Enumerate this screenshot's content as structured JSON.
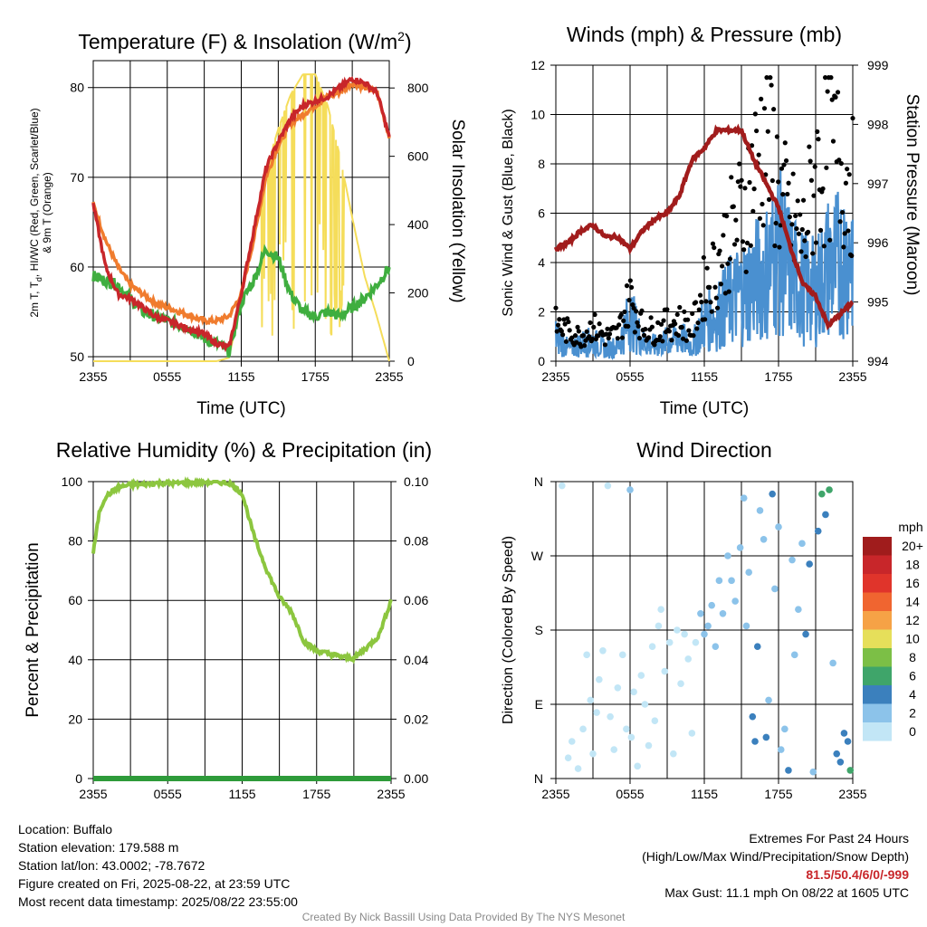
{
  "colors": {
    "temp_red": "#c8262a",
    "dewpoint_green": "#3fae3f",
    "temp9m_orange": "#f07c2e",
    "insolation_yellow": "#f5dd5a",
    "rh_green": "#8cc63f",
    "precip_green": "#2e9b3a",
    "wind_blue": "#4a90d0",
    "gust_black": "#000000",
    "pressure_maroon": "#a11c1c",
    "extremes_red": "#c8262a",
    "credit_gray": "#8a8a8a"
  },
  "chart_data": [
    {
      "type": "line",
      "title": "Temperature (F) & Insolation (W/m²)",
      "xlabel": "Time (UTC)",
      "ylabel": "2m T, Td, HI/WC (Red, Green, Scarlet/Blue) & 9m T (Orange)",
      "ylabel_parts": [
        "2m T, T",
        "d",
        ", HI/WC (Red, Green, Scarlet/Blue)",
        "& 9m T (Orange)"
      ],
      "y2label": "Solar Insolation (Yellow)",
      "x_ticks": [
        "2355",
        "0555",
        "1155",
        "1755",
        "2355"
      ],
      "x": [
        0,
        1,
        2,
        3,
        4,
        5,
        6,
        7,
        8,
        9,
        10,
        11,
        12,
        13,
        14,
        15,
        16,
        17,
        18,
        19,
        20,
        21,
        22,
        23,
        24
      ],
      "xlim": [
        0,
        24
      ],
      "ylim": [
        49.5,
        83
      ],
      "y_ticks": [
        50,
        60,
        70,
        80
      ],
      "y2lim": [
        0,
        880
      ],
      "y2_ticks": [
        0,
        200,
        400,
        600,
        800
      ],
      "grid": true,
      "series": [
        {
          "name": "2m T",
          "axis": "left",
          "values": [
            67,
            60,
            57,
            56.5,
            55.5,
            54.5,
            54,
            53.5,
            53,
            52.5,
            51.5,
            51,
            57,
            64,
            71,
            74,
            76.5,
            78,
            78.5,
            79,
            80,
            81,
            80.5,
            79.5,
            74.5
          ]
        },
        {
          "name": "9m T",
          "axis": "left",
          "values": [
            67,
            63,
            60,
            58,
            57,
            56,
            55.5,
            55,
            54.5,
            54,
            54,
            54.5,
            57,
            63,
            70,
            73.5,
            76,
            77,
            78,
            79,
            79.5,
            80.5,
            80,
            79.5,
            74.5
          ]
        },
        {
          "name": "Td",
          "axis": "left",
          "values": [
            59,
            58.5,
            58,
            56.5,
            55,
            54.5,
            54,
            53.5,
            53,
            52,
            51.5,
            50.5,
            56,
            58.5,
            62,
            61,
            57,
            55,
            54.5,
            55,
            54.5,
            55.5,
            56.5,
            58,
            60
          ]
        },
        {
          "name": "Solar Insolation",
          "axis": "right",
          "values": [
            0,
            0,
            0,
            0,
            0,
            0,
            0,
            0,
            0,
            0,
            0,
            10,
            180,
            380,
            560,
            680,
            780,
            840,
            840,
            750,
            600,
            420,
            250,
            130,
            0
          ]
        }
      ]
    },
    {
      "type": "scatter",
      "title": "Winds (mph) & Pressure (mb)",
      "xlabel": "Time (UTC)",
      "ylabel": "Sonic Wind & Gust (Blue, Black)",
      "y2label": "Station Pressure (Maroon)",
      "x_ticks": [
        "2355",
        "0555",
        "1155",
        "1755",
        "2355"
      ],
      "xlim": [
        0,
        24
      ],
      "ylim": [
        0,
        12
      ],
      "y_ticks": [
        0,
        2,
        4,
        6,
        8,
        10,
        12
      ],
      "y2lim": [
        994,
        999
      ],
      "y2_ticks": [
        994,
        995,
        996,
        997,
        998,
        999
      ],
      "grid": true,
      "x": [
        0,
        1,
        2,
        3,
        4,
        5,
        6,
        7,
        8,
        9,
        10,
        11,
        12,
        13,
        14,
        15,
        16,
        17,
        18,
        19,
        20,
        21,
        22,
        23,
        24
      ],
      "series": [
        {
          "name": "Sonic Wind",
          "axis": "left",
          "values": [
            1.0,
            0.5,
            0.7,
            0.8,
            0.5,
            0.6,
            1.8,
            0.8,
            0.6,
            0.8,
            1.0,
            0.6,
            1.6,
            1.8,
            2.4,
            2.8,
            3.2,
            3.6,
            4.5,
            3.5,
            3.0,
            2.8,
            3.8,
            4.0,
            4.5
          ]
        },
        {
          "name": "Gust",
          "axis": "left",
          "values": [
            1.5,
            1.2,
            1.0,
            1.4,
            1.0,
            1.1,
            2.6,
            1.4,
            1.2,
            1.5,
            1.6,
            1.3,
            3.0,
            3.8,
            5.0,
            6.0,
            7.5,
            9.5,
            7.0,
            5.5,
            5.0,
            7.5,
            8.5,
            8.0,
            7.2
          ]
        },
        {
          "name": "Station Pressure",
          "axis": "right",
          "values": [
            995.9,
            996.0,
            996.2,
            996.3,
            996.1,
            996.1,
            995.9,
            996.2,
            996.4,
            996.5,
            996.8,
            997.4,
            997.6,
            997.9,
            997.9,
            997.9,
            997.4,
            997.0,
            996.6,
            995.9,
            995.3,
            995.1,
            994.6,
            994.8,
            995.0
          ]
        }
      ]
    },
    {
      "type": "line",
      "title": "Relative Humidity (%) & Precipitation (in)",
      "ylabel": "Percent & Precipitation",
      "x_ticks": [
        "2355",
        "0555",
        "1155",
        "1755",
        "2355"
      ],
      "x": [
        0,
        0.5,
        1,
        2,
        3,
        4,
        5,
        6,
        7,
        8,
        9,
        10,
        11,
        12,
        13,
        14,
        15,
        16,
        17,
        18,
        19,
        20,
        21,
        22,
        23,
        24
      ],
      "xlim": [
        0,
        24
      ],
      "ylim": [
        0,
        100
      ],
      "y_ticks": [
        0,
        20,
        40,
        60,
        80,
        100
      ],
      "y2lim": [
        0,
        0.1
      ],
      "y2_ticks": [
        "0.00",
        "0.02",
        "0.04",
        "0.06",
        "0.08",
        "0.10"
      ],
      "grid": true,
      "series": [
        {
          "name": "Relative Humidity",
          "axis": "left",
          "values": [
            76,
            90,
            95,
            98,
            99,
            99,
            99.5,
            99.5,
            99.5,
            99.7,
            99.8,
            99.8,
            99.5,
            96,
            81,
            70,
            61,
            56,
            46,
            43,
            42,
            41,
            40.5,
            44,
            48,
            60
          ]
        },
        {
          "name": "Precipitation",
          "axis": "right",
          "values": [
            0,
            0,
            0,
            0,
            0,
            0,
            0,
            0,
            0,
            0,
            0,
            0,
            0,
            0,
            0,
            0,
            0,
            0,
            0,
            0,
            0,
            0,
            0,
            0,
            0,
            0
          ]
        }
      ]
    },
    {
      "type": "scatter",
      "title": "Wind Direction",
      "ylabel": "Direction (Colored By Speed)",
      "x_ticks": [
        "2355",
        "0555",
        "1155",
        "1755",
        "2355"
      ],
      "y_ticks": [
        "N",
        "E",
        "S",
        "W",
        "N"
      ],
      "xlim": [
        0,
        24
      ],
      "ylim": [
        0,
        360
      ],
      "grid": true,
      "legend": {
        "title": "mph",
        "placement": "right",
        "labels": [
          "20+",
          "18",
          "16",
          "14",
          "12",
          "10",
          "8",
          "6",
          "4",
          "2",
          "0"
        ],
        "colors": [
          "#a01c1c",
          "#c8262a",
          "#e0342b",
          "#f06530",
          "#f6a246",
          "#e6df5a",
          "#7cbf46",
          "#3fa56a",
          "#3b80bd",
          "#8cc3ea",
          "#c2e6f6"
        ]
      },
      "points": [
        {
          "x": 0.5,
          "y": 355,
          "speed": 1
        },
        {
          "x": 1.0,
          "y": 25,
          "speed": 1
        },
        {
          "x": 1.3,
          "y": 45,
          "speed": 1
        },
        {
          "x": 1.8,
          "y": 12,
          "speed": 1
        },
        {
          "x": 2.2,
          "y": 60,
          "speed": 1
        },
        {
          "x": 2.5,
          "y": 150,
          "speed": 1
        },
        {
          "x": 2.8,
          "y": 95,
          "speed": 1
        },
        {
          "x": 3.0,
          "y": 30,
          "speed": 1
        },
        {
          "x": 3.3,
          "y": 80,
          "speed": 1
        },
        {
          "x": 3.5,
          "y": 120,
          "speed": 1
        },
        {
          "x": 3.8,
          "y": 155,
          "speed": 1
        },
        {
          "x": 4.2,
          "y": 355,
          "speed": 1
        },
        {
          "x": 4.4,
          "y": 75,
          "speed": 1
        },
        {
          "x": 4.7,
          "y": 35,
          "speed": 1
        },
        {
          "x": 5.0,
          "y": 110,
          "speed": 1
        },
        {
          "x": 5.4,
          "y": 150,
          "speed": 1
        },
        {
          "x": 5.7,
          "y": 60,
          "speed": 1
        },
        {
          "x": 6.0,
          "y": 350,
          "speed": 3
        },
        {
          "x": 6.1,
          "y": 50,
          "speed": 1
        },
        {
          "x": 6.3,
          "y": 105,
          "speed": 1
        },
        {
          "x": 6.6,
          "y": 15,
          "speed": 1
        },
        {
          "x": 6.9,
          "y": 125,
          "speed": 1
        },
        {
          "x": 7.2,
          "y": 90,
          "speed": 1
        },
        {
          "x": 7.5,
          "y": 40,
          "speed": 1
        },
        {
          "x": 7.8,
          "y": 160,
          "speed": 1
        },
        {
          "x": 8.0,
          "y": 70,
          "speed": 1
        },
        {
          "x": 8.3,
          "y": 185,
          "speed": 1
        },
        {
          "x": 8.5,
          "y": 205,
          "speed": 1
        },
        {
          "x": 8.8,
          "y": 130,
          "speed": 1
        },
        {
          "x": 9.2,
          "y": 165,
          "speed": 1
        },
        {
          "x": 9.5,
          "y": 30,
          "speed": 1
        },
        {
          "x": 9.8,
          "y": 180,
          "speed": 1
        },
        {
          "x": 10.1,
          "y": 115,
          "speed": 1
        },
        {
          "x": 10.4,
          "y": 175,
          "speed": 1
        },
        {
          "x": 10.7,
          "y": 145,
          "speed": 1
        },
        {
          "x": 11.0,
          "y": 55,
          "speed": 1
        },
        {
          "x": 11.3,
          "y": 165,
          "speed": 1
        },
        {
          "x": 11.7,
          "y": 200,
          "speed": 2
        },
        {
          "x": 12.0,
          "y": 175,
          "speed": 2
        },
        {
          "x": 12.3,
          "y": 185,
          "speed": 2
        },
        {
          "x": 12.6,
          "y": 210,
          "speed": 2
        },
        {
          "x": 12.9,
          "y": 160,
          "speed": 2
        },
        {
          "x": 13.2,
          "y": 240,
          "speed": 2
        },
        {
          "x": 13.5,
          "y": 200,
          "speed": 2
        },
        {
          "x": 13.9,
          "y": 270,
          "speed": 2
        },
        {
          "x": 14.2,
          "y": 240,
          "speed": 2
        },
        {
          "x": 14.5,
          "y": 215,
          "speed": 2
        },
        {
          "x": 14.9,
          "y": 280,
          "speed": 2
        },
        {
          "x": 15.2,
          "y": 340,
          "speed": 3
        },
        {
          "x": 15.4,
          "y": 185,
          "speed": 3
        },
        {
          "x": 15.6,
          "y": 250,
          "speed": 2
        },
        {
          "x": 15.9,
          "y": 75,
          "speed": 4
        },
        {
          "x": 16.1,
          "y": 45,
          "speed": 5
        },
        {
          "x": 16.3,
          "y": 160,
          "speed": 4
        },
        {
          "x": 16.5,
          "y": 325,
          "speed": 3
        },
        {
          "x": 16.8,
          "y": 290,
          "speed": 2
        },
        {
          "x": 17.0,
          "y": 50,
          "speed": 4
        },
        {
          "x": 17.2,
          "y": 95,
          "speed": 3
        },
        {
          "x": 17.5,
          "y": 345,
          "speed": 4
        },
        {
          "x": 17.7,
          "y": 230,
          "speed": 2
        },
        {
          "x": 18.0,
          "y": 305,
          "speed": 2
        },
        {
          "x": 18.2,
          "y": 35,
          "speed": 3
        },
        {
          "x": 18.5,
          "y": 60,
          "speed": 3
        },
        {
          "x": 18.8,
          "y": 10,
          "speed": 4
        },
        {
          "x": 19.1,
          "y": 265,
          "speed": 2
        },
        {
          "x": 19.3,
          "y": 150,
          "speed": 3
        },
        {
          "x": 19.6,
          "y": 205,
          "speed": 3
        },
        {
          "x": 19.9,
          "y": 285,
          "speed": 3
        },
        {
          "x": 20.2,
          "y": 175,
          "speed": 4
        },
        {
          "x": 20.5,
          "y": 260,
          "speed": 4
        },
        {
          "x": 20.8,
          "y": 8,
          "speed": 3
        },
        {
          "x": 21.2,
          "y": 300,
          "speed": 5
        },
        {
          "x": 21.5,
          "y": 345,
          "speed": 6
        },
        {
          "x": 21.8,
          "y": 320,
          "speed": 5
        },
        {
          "x": 22.1,
          "y": 350,
          "speed": 6
        },
        {
          "x": 22.4,
          "y": 140,
          "speed": 3
        },
        {
          "x": 22.7,
          "y": 30,
          "speed": 4
        },
        {
          "x": 23.0,
          "y": 20,
          "speed": 5
        },
        {
          "x": 23.3,
          "y": 55,
          "speed": 5
        },
        {
          "x": 23.6,
          "y": 45,
          "speed": 4
        },
        {
          "x": 23.8,
          "y": 10,
          "speed": 6
        }
      ]
    }
  ],
  "info": {
    "location": "Location: Buffalo",
    "elevation": "Station elevation: 179.588 m",
    "latlon": "Station lat/lon: 43.0002; -78.7672",
    "created": "Figure created on Fri, 2025-08-22, at 23:59 UTC",
    "recent": "Most recent data timestamp: 2025/08/22 23:55:00"
  },
  "extremes": {
    "heading": "Extremes For Past 24 Hours",
    "fields": "(High/Low/Max Wind/Precipitation/Snow Depth)",
    "values": "81.5/50.4/6/0/-999",
    "max_gust": "Max Gust: 11.1 mph On 08/22 at 1605 UTC"
  },
  "credit": "Created By Nick Bassill Using Data Provided By The NYS Mesonet"
}
